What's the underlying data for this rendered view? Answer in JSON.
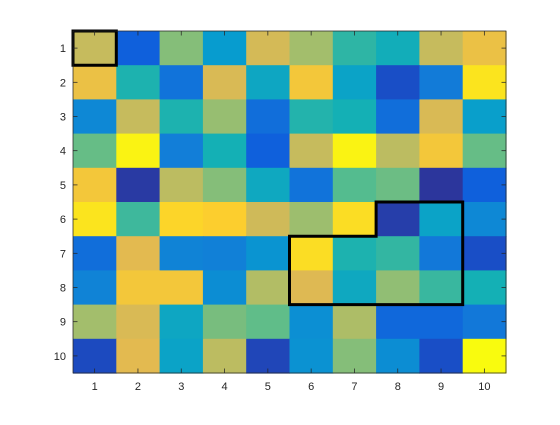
{
  "chart_data": {
    "type": "heatmap",
    "x": [
      1,
      2,
      3,
      4,
      5,
      6,
      7,
      8,
      9,
      10
    ],
    "y": [
      1,
      2,
      3,
      4,
      5,
      6,
      7,
      8,
      9,
      10
    ],
    "xticks": [
      "1",
      "2",
      "3",
      "4",
      "5",
      "6",
      "7",
      "8",
      "9",
      "10"
    ],
    "yticks": [
      "1",
      "2",
      "3",
      "4",
      "5",
      "6",
      "7",
      "8",
      "9",
      "10"
    ],
    "xlim": [
      0.5,
      10.5
    ],
    "ylim": [
      0.5,
      10.5
    ],
    "y_direction": "reverse",
    "colormap": "parula",
    "clim": [
      1,
      100
    ],
    "values": [
      [
        82,
        15,
        70,
        38,
        85,
        75,
        55,
        48,
        82,
        90
      ],
      [
        90,
        52,
        22,
        86,
        44,
        92,
        42,
        10,
        25,
        97
      ],
      [
        30,
        82,
        52,
        73,
        20,
        53,
        50,
        20,
        86,
        40
      ],
      [
        65,
        99,
        26,
        50,
        15,
        82,
        99,
        80,
        92,
        65
      ],
      [
        92,
        5,
        80,
        70,
        45,
        22,
        62,
        66,
        4,
        15
      ],
      [
        97,
        58,
        95,
        94,
        84,
        74,
        96,
        6,
        42,
        30
      ],
      [
        20,
        88,
        28,
        27,
        35,
        96,
        52,
        56,
        24,
        10
      ],
      [
        28,
        92,
        92,
        32,
        78,
        87,
        45,
        72,
        57,
        50
      ],
      [
        75,
        86,
        44,
        68,
        64,
        33,
        77,
        18,
        18,
        24
      ],
      [
        9,
        88,
        42,
        80,
        8,
        34,
        70,
        32,
        10,
        100
      ]
    ],
    "highlights": [
      {
        "cells": [
          [
            1,
            1
          ]
        ]
      },
      {
        "cells": [
          [
            8,
            6
          ],
          [
            9,
            6
          ],
          [
            6,
            7
          ],
          [
            7,
            7
          ],
          [
            8,
            7
          ],
          [
            9,
            7
          ],
          [
            6,
            8
          ],
          [
            7,
            8
          ],
          [
            8,
            8
          ],
          [
            9,
            8
          ]
        ]
      }
    ],
    "grid": false
  }
}
